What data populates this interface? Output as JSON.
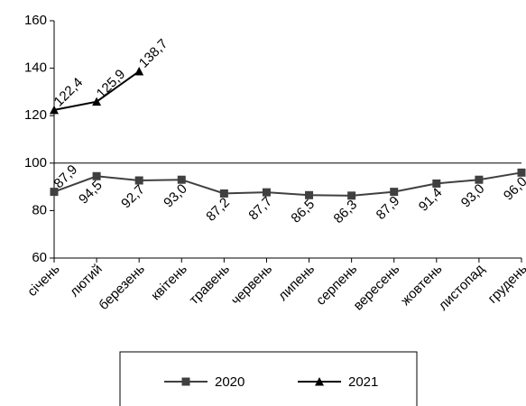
{
  "chart_data": {
    "type": "line",
    "categories": [
      "січень",
      "лютий",
      "березень",
      "квітень",
      "травень",
      "червень",
      "липень",
      "серпень",
      "вересень",
      "жовтень",
      "листопад",
      "грудень"
    ],
    "series": [
      {
        "name": "2020",
        "color": "#404040",
        "marker": "square",
        "values": [
          87.9,
          94.5,
          92.7,
          93.0,
          87.2,
          87.7,
          86.5,
          86.3,
          87.9,
          91.4,
          93.0,
          96.0
        ],
        "value_labels": [
          "87,9",
          "94,5",
          "92,7",
          "93,0",
          "87,2",
          "87,7",
          "86,5",
          "86,3",
          "87,9",
          "91,4",
          "93,0",
          "96,0"
        ]
      },
      {
        "name": "2021",
        "color": "#000000",
        "marker": "triangle",
        "values": [
          122.4,
          125.9,
          138.7,
          null,
          null,
          null,
          null,
          null,
          null,
          null,
          null,
          null
        ],
        "value_labels": [
          "122,4",
          "125,9",
          "138,7",
          null,
          null,
          null,
          null,
          null,
          null,
          null,
          null,
          null
        ]
      }
    ],
    "ylim": [
      60,
      160
    ],
    "yticks": [
      60,
      80,
      100,
      120,
      140,
      160
    ],
    "reference_line": 100,
    "legend": "bottom"
  }
}
